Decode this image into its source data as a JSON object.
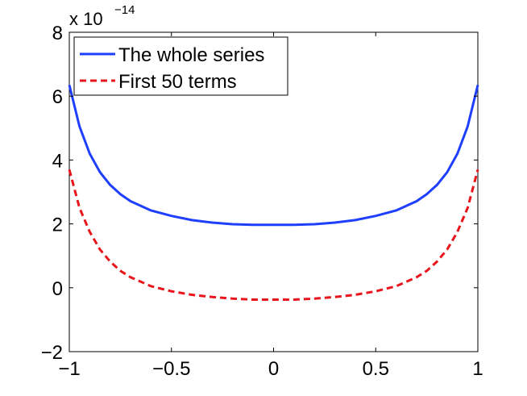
{
  "chart_data": {
    "type": "line",
    "title": "",
    "xlabel": "",
    "ylabel": "",
    "xlim": [
      -1,
      1
    ],
    "ylim": [
      -2,
      8
    ],
    "y_multiplier": {
      "base": "x 10",
      "exponent": "−14"
    },
    "x_ticks": [
      {
        "value": -1,
        "label": "−1"
      },
      {
        "value": -0.5,
        "label": "−0.5"
      },
      {
        "value": 0,
        "label": "0"
      },
      {
        "value": 0.5,
        "label": "0.5"
      },
      {
        "value": 1,
        "label": "1"
      }
    ],
    "y_ticks": [
      {
        "value": -2,
        "label": "−2"
      },
      {
        "value": 0,
        "label": "0"
      },
      {
        "value": 2,
        "label": "2"
      },
      {
        "value": 4,
        "label": "4"
      },
      {
        "value": 6,
        "label": "6"
      },
      {
        "value": 8,
        "label": "8"
      }
    ],
    "grid": false,
    "legend_position": "top-left",
    "series": [
      {
        "name": "The whole series",
        "color": "#1f3fff",
        "style": "solid",
        "x": [
          -1,
          -0.95,
          -0.9,
          -0.85,
          -0.8,
          -0.75,
          -0.7,
          -0.6,
          -0.5,
          -0.4,
          -0.3,
          -0.2,
          -0.1,
          0,
          0.1,
          0.2,
          0.3,
          0.4,
          0.5,
          0.6,
          0.7,
          0.75,
          0.8,
          0.85,
          0.9,
          0.95,
          1
        ],
        "y": [
          6.35,
          5.05,
          4.2,
          3.62,
          3.22,
          2.93,
          2.71,
          2.42,
          2.25,
          2.12,
          2.04,
          1.99,
          1.97,
          1.97,
          1.97,
          1.99,
          2.04,
          2.12,
          2.25,
          2.42,
          2.71,
          2.93,
          3.22,
          3.62,
          4.2,
          5.05,
          6.35
        ]
      },
      {
        "name": "First 50 terms",
        "color": "#e8161c",
        "style": "dashed",
        "x": [
          -1,
          -0.95,
          -0.9,
          -0.85,
          -0.8,
          -0.75,
          -0.7,
          -0.6,
          -0.5,
          -0.4,
          -0.3,
          -0.2,
          -0.1,
          0,
          0.1,
          0.2,
          0.3,
          0.4,
          0.5,
          0.6,
          0.7,
          0.75,
          0.8,
          0.85,
          0.9,
          0.95,
          1
        ],
        "y": [
          3.7,
          2.5,
          1.75,
          1.2,
          0.82,
          0.53,
          0.33,
          0.05,
          -0.11,
          -0.22,
          -0.29,
          -0.34,
          -0.37,
          -0.37,
          -0.37,
          -0.34,
          -0.29,
          -0.22,
          -0.11,
          0.05,
          0.33,
          0.53,
          0.82,
          1.2,
          1.75,
          2.5,
          3.7
        ]
      }
    ]
  }
}
